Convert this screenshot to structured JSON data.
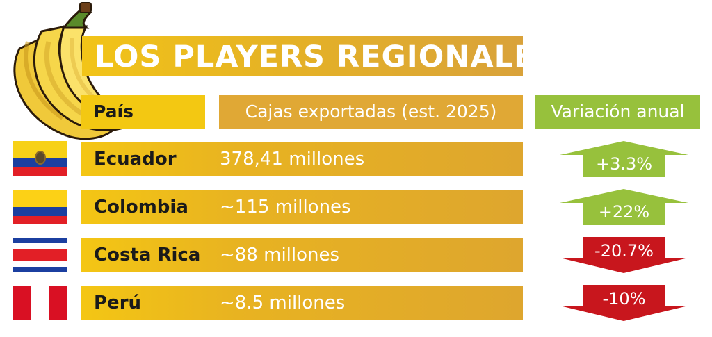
{
  "title": "LOS PLAYERS REGIONALES",
  "headers": {
    "country": "País",
    "boxes": "Cajas exportadas (est. 2025)",
    "change": "Variación anual"
  },
  "colors": {
    "increase": "#97c13c",
    "decrease": "#c8161d",
    "header_gold": "#e0a835",
    "title_gold": "#e5b225"
  },
  "chart_data": {
    "type": "table",
    "columns": [
      "País",
      "Cajas exportadas (est. 2025)",
      "Variación anual"
    ],
    "rows": [
      {
        "country": "Ecuador",
        "flag_icon": "ecuador-flag-icon",
        "boxes": "378,41 millones",
        "boxes_millions": 378.41,
        "change": "+3.3%",
        "change_pct": 3.3,
        "direction": "up"
      },
      {
        "country": "Colombia",
        "flag_icon": "colombia-flag-icon",
        "boxes": "~115 millones",
        "boxes_millions": 115,
        "change": "+22%",
        "change_pct": 22,
        "direction": "up"
      },
      {
        "country": "Costa Rica",
        "flag_icon": "costa-rica-flag-icon",
        "boxes": "~88 millones",
        "boxes_millions": 88,
        "change": "-20.7%",
        "change_pct": -20.7,
        "direction": "down"
      },
      {
        "country": "Perú",
        "flag_icon": "peru-flag-icon",
        "boxes": "~8.5 millones",
        "boxes_millions": 8.5,
        "change": "-10%",
        "change_pct": -10,
        "direction": "down"
      }
    ]
  }
}
